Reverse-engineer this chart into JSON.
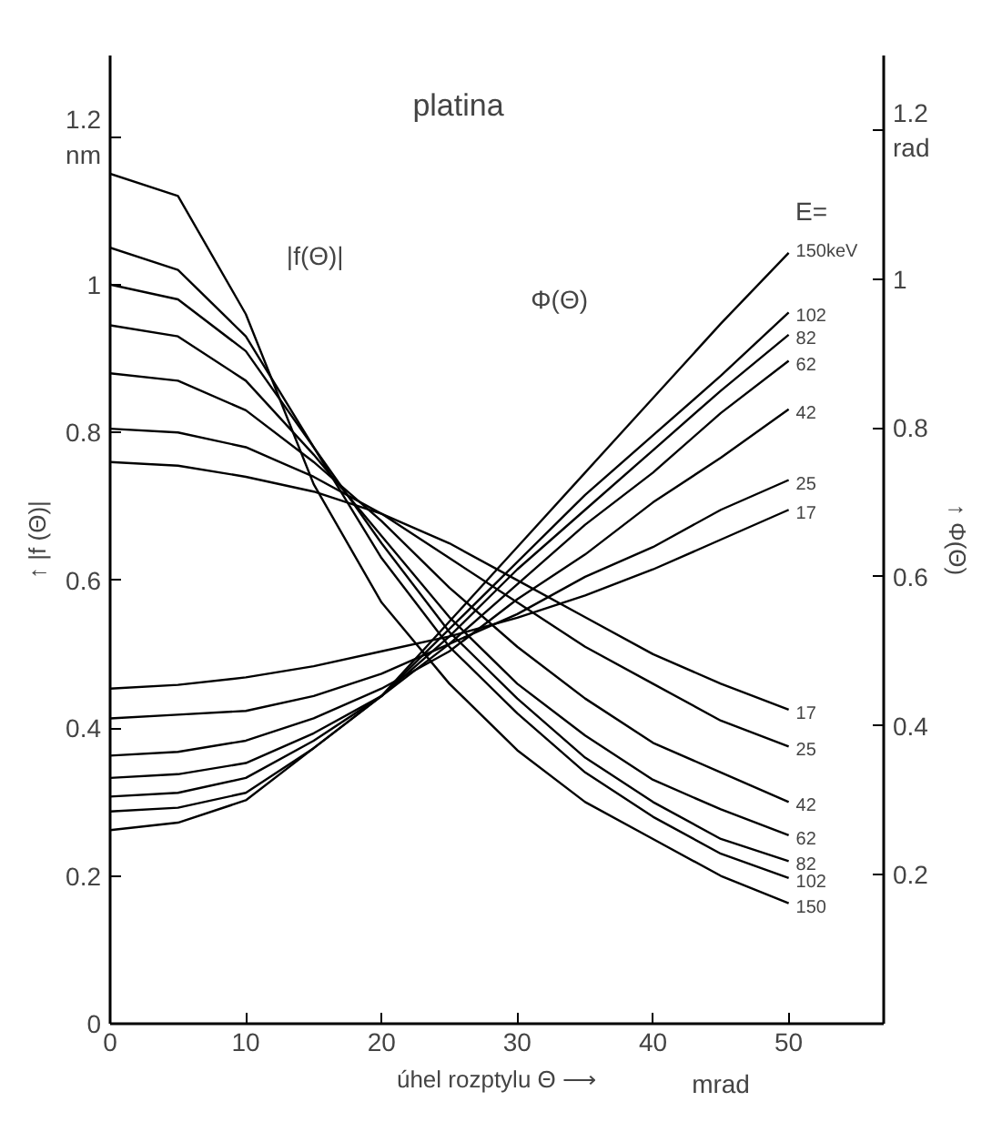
{
  "chart_data": {
    "type": "line",
    "title": "platina",
    "xlabel": "úhel rozptylu Θ ⟶",
    "ylabel": "↑ |f (Θ)|",
    "y2label": "↑ Φ(Θ)",
    "x": [
      0,
      5,
      10,
      15,
      20,
      25,
      30,
      35,
      40,
      45,
      50
    ],
    "series": [
      {
        "name": "17",
        "color": "#000000",
        "values": [
          0.76,
          0.755,
          0.74,
          0.72,
          0.69,
          0.65,
          0.6,
          0.55,
          0.5,
          0.46,
          0.425
        ]
      },
      {
        "name": "25",
        "color": "#000000",
        "values": [
          0.805,
          0.8,
          0.78,
          0.74,
          0.69,
          0.63,
          0.57,
          0.51,
          0.46,
          0.41,
          0.375
        ]
      },
      {
        "name": "42",
        "color": "#000000",
        "values": [
          0.88,
          0.87,
          0.83,
          0.76,
          0.68,
          0.59,
          0.51,
          0.44,
          0.38,
          0.34,
          0.3
        ]
      },
      {
        "name": "62",
        "color": "#000000",
        "values": [
          0.945,
          0.93,
          0.87,
          0.77,
          0.66,
          0.55,
          0.46,
          0.39,
          0.33,
          0.29,
          0.255
        ]
      },
      {
        "name": "82",
        "color": "#000000",
        "values": [
          1.0,
          0.98,
          0.91,
          0.78,
          0.65,
          0.53,
          0.44,
          0.36,
          0.3,
          0.25,
          0.22
        ]
      },
      {
        "name": "102",
        "color": "#000000",
        "values": [
          1.05,
          1.02,
          0.93,
          0.78,
          0.63,
          0.51,
          0.42,
          0.34,
          0.28,
          0.23,
          0.197
        ]
      },
      {
        "name": "150",
        "color": "#000000",
        "values": [
          1.15,
          1.12,
          0.96,
          0.73,
          0.57,
          0.46,
          0.37,
          0.3,
          0.25,
          0.2,
          0.163
        ]
      },
      {
        "name": "150keV",
        "color": "#000000",
        "axis": "y2",
        "values": [
          0.26,
          0.27,
          0.3,
          0.37,
          0.44,
          0.54,
          0.64,
          0.74,
          0.84,
          0.94,
          1.035
        ]
      },
      {
        "name": "102",
        "color": "#000000",
        "axis": "y2",
        "values": [
          0.285,
          0.29,
          0.31,
          0.37,
          0.44,
          0.53,
          0.62,
          0.71,
          0.79,
          0.87,
          0.955
        ]
      },
      {
        "name": "82",
        "color": "#000000",
        "axis": "y2",
        "values": [
          0.305,
          0.31,
          0.33,
          0.38,
          0.44,
          0.52,
          0.61,
          0.69,
          0.77,
          0.85,
          0.925
        ]
      },
      {
        "name": "62",
        "color": "#000000",
        "axis": "y2",
        "values": [
          0.33,
          0.335,
          0.35,
          0.39,
          0.44,
          0.51,
          0.59,
          0.67,
          0.74,
          0.82,
          0.89
        ]
      },
      {
        "name": "42",
        "color": "#000000",
        "axis": "y2",
        "values": [
          0.36,
          0.365,
          0.38,
          0.41,
          0.45,
          0.5,
          0.57,
          0.63,
          0.7,
          0.76,
          0.825
        ]
      },
      {
        "name": "25",
        "color": "#000000",
        "axis": "y2",
        "values": [
          0.41,
          0.415,
          0.42,
          0.44,
          0.47,
          0.51,
          0.55,
          0.6,
          0.64,
          0.69,
          0.73
        ]
      },
      {
        "name": "17",
        "color": "#000000",
        "axis": "y2",
        "values": [
          0.45,
          0.455,
          0.465,
          0.48,
          0.5,
          0.52,
          0.545,
          0.575,
          0.61,
          0.65,
          0.69
        ]
      }
    ],
    "annotations": [
      "|f(Θ)|",
      "Φ(Θ)",
      "E=",
      "mrad"
    ],
    "xlim": [
      0,
      57
    ],
    "ylim": [
      0,
      1.31
    ],
    "y2lim": [
      0,
      1.3
    ],
    "xticks": [
      0,
      10,
      20,
      30,
      40,
      50
    ],
    "yticks": [
      0,
      0.2,
      0.4,
      0.6,
      0.8,
      1.0,
      {
        "value": 1.2,
        "label": "1.2\nnm"
      }
    ],
    "y2ticks": [
      0.2,
      0.4,
      0.6,
      0.8,
      1.0,
      {
        "value": 1.2,
        "label": "1.2\nrad"
      }
    ],
    "grid": false,
    "marker": "none",
    "line_style": "solid"
  }
}
